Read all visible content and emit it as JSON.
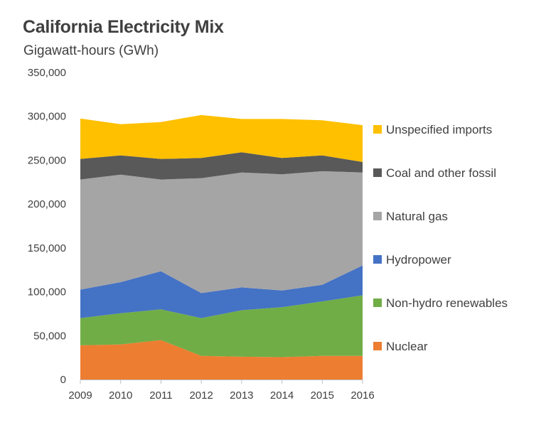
{
  "chart_data": {
    "type": "area",
    "stacked": true,
    "title": "California Electricity Mix",
    "subtitle": "Gigawatt-hours (GWh)",
    "x": [
      "2009",
      "2010",
      "2011",
      "2012",
      "2013",
      "2014",
      "2015",
      "2016"
    ],
    "yticks": [
      "350,000",
      "300,000",
      "250,000",
      "200,000",
      "150,000",
      "100,000",
      "50,000",
      "0"
    ],
    "ylim": [
      0,
      350000
    ],
    "grid": false,
    "legend_position": "right",
    "series": [
      {
        "name": "Nuclear",
        "color": "#ed7d31",
        "values": [
          39000,
          40000,
          45000,
          27000,
          26000,
          25500,
          27000,
          27000
        ]
      },
      {
        "name": "Non-hydro renewables",
        "color": "#70ad47",
        "values": [
          31000,
          35500,
          35000,
          43000,
          53000,
          57000,
          62000,
          69000
        ]
      },
      {
        "name": "Hydropower",
        "color": "#4472c4",
        "values": [
          32500,
          35500,
          43500,
          28500,
          26000,
          19000,
          19000,
          34000
        ]
      },
      {
        "name": "Natural gas",
        "color": "#a5a5a5",
        "values": [
          125500,
          122500,
          104500,
          131000,
          131000,
          132500,
          129500,
          106000
        ]
      },
      {
        "name": "Coal and other fossil",
        "color": "#595959",
        "values": [
          23500,
          22000,
          23500,
          23000,
          23000,
          18500,
          18000,
          12000
        ]
      },
      {
        "name": "Unspecified imports",
        "color": "#ffc000",
        "values": [
          46000,
          35500,
          42000,
          49000,
          38000,
          44500,
          40000,
          42000
        ]
      }
    ]
  }
}
